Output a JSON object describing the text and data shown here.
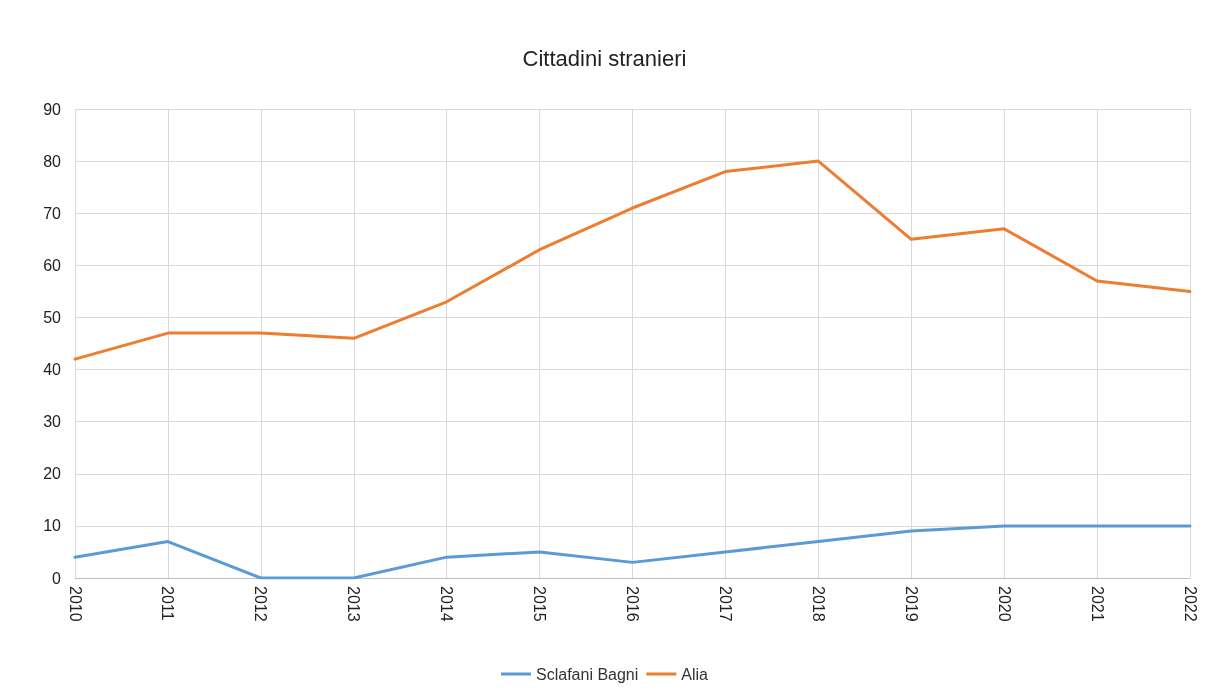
{
  "chart_data": {
    "type": "line",
    "title": "Cittadini stranieri",
    "categories": [
      "2010",
      "2011",
      "2012",
      "2013",
      "2014",
      "2015",
      "2016",
      "2017",
      "2018",
      "2019",
      "2020",
      "2021",
      "2022"
    ],
    "series": [
      {
        "name": "Sclafani Bagni",
        "color": "#5b9bd5",
        "values": [
          4,
          7,
          0,
          0,
          4,
          5,
          3,
          5,
          7,
          9,
          10,
          10,
          10
        ]
      },
      {
        "name": "Alia",
        "color": "#ed7d31",
        "values": [
          42,
          47,
          47,
          46,
          53,
          63,
          71,
          78,
          80,
          65,
          67,
          57,
          55
        ]
      }
    ],
    "ylim": [
      0,
      90
    ],
    "yticks": [
      0,
      10,
      20,
      30,
      40,
      50,
      60,
      70,
      80,
      90
    ],
    "grid": true,
    "legend": "bottom",
    "marker": "none",
    "line_style": "solid"
  }
}
